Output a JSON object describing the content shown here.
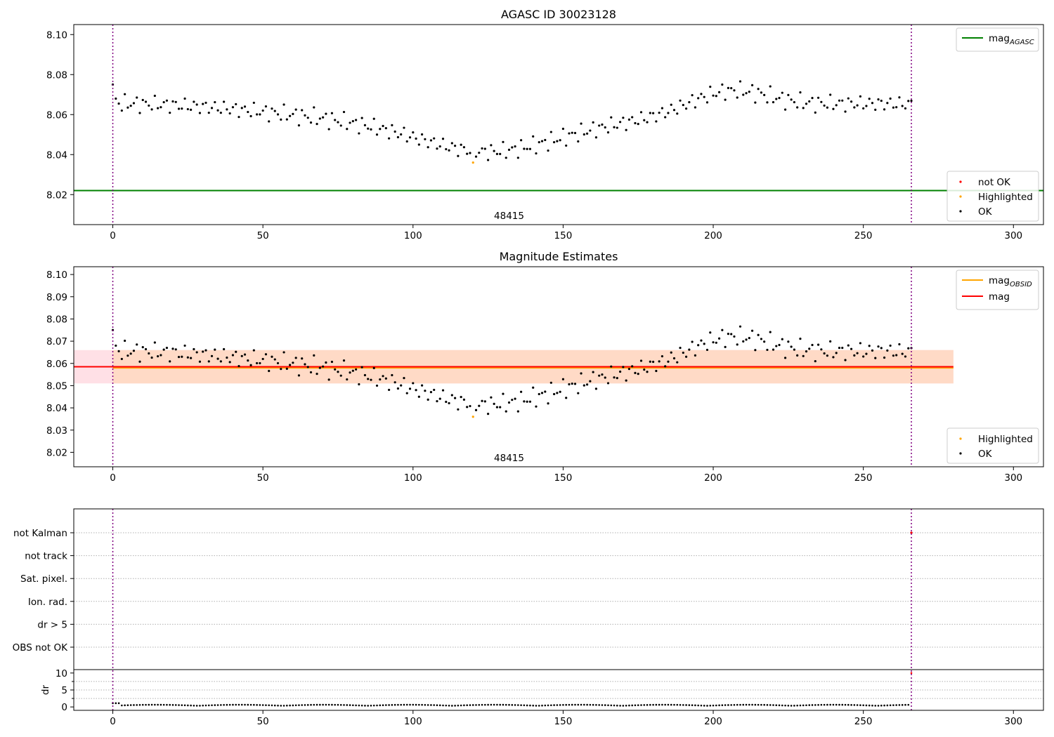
{
  "chart_data": [
    {
      "type": "scatter",
      "title": "AGASC ID 30023128",
      "xlim": [
        -13,
        310
      ],
      "ylim": [
        8.005,
        8.105
      ],
      "xticks": [
        0,
        50,
        100,
        150,
        200,
        250,
        300
      ],
      "yticks": [
        8.02,
        8.04,
        8.06,
        8.08,
        8.1
      ],
      "ytick_labels": [
        "8.02",
        "8.04",
        "8.06",
        "8.08",
        "8.10"
      ],
      "obsid_label": "48415",
      "vlines": [
        0,
        266
      ],
      "hlines": [
        {
          "name": "mag_AGASC",
          "y": 8.022,
          "x_range": [
            -13,
            310
          ],
          "color": "#008000"
        }
      ],
      "series": [
        {
          "name": "not OK",
          "color": "#ff0000",
          "x": [],
          "y": []
        },
        {
          "name": "Highlighted",
          "color": "#ffa500",
          "x": [
            120
          ],
          "y": [
            8.036
          ]
        },
        {
          "name": "OK",
          "color": "#000000",
          "x": [],
          "y": []
        }
      ],
      "legend_lines": [
        {
          "label": "mag",
          "sub": "AGASC",
          "color": "#008000"
        }
      ],
      "legend_markers": [
        {
          "label": "not OK",
          "color": "#ff0000"
        },
        {
          "label": "Highlighted",
          "color": "#ffa500"
        },
        {
          "label": "OK",
          "color": "#000000"
        }
      ]
    },
    {
      "type": "scatter",
      "title": "Magnitude Estimates",
      "xlim": [
        -13,
        310
      ],
      "ylim": [
        8.0135,
        8.1035
      ],
      "xticks": [
        0,
        50,
        100,
        150,
        200,
        250,
        300
      ],
      "yticks": [
        8.02,
        8.03,
        8.04,
        8.05,
        8.06,
        8.07,
        8.08,
        8.09,
        8.1
      ],
      "ytick_labels": [
        "8.02",
        "8.03",
        "8.04",
        "8.05",
        "8.06",
        "8.07",
        "8.08",
        "8.09",
        "8.10"
      ],
      "obsid_label": "48415",
      "vlines": [
        0,
        266
      ],
      "bands": [
        {
          "name": "mag band",
          "x_range": [
            -13,
            280
          ],
          "y_range": [
            8.051,
            8.066
          ],
          "color": "#ffdde3"
        },
        {
          "name": "mag_OBSID band",
          "x_range": [
            0,
            280
          ],
          "y_range": [
            8.051,
            8.066
          ],
          "color": "#ffd9c2"
        }
      ],
      "hlines": [
        {
          "name": "mag_OBSID",
          "y": 8.058,
          "x_range": [
            0,
            280
          ],
          "color": "#ffa500"
        },
        {
          "name": "mag",
          "y": 8.0585,
          "x_range": [
            -13,
            280
          ],
          "color": "#ff0000"
        }
      ],
      "series": [
        {
          "name": "Highlighted",
          "color": "#ffa500",
          "x": [
            120
          ],
          "y": [
            8.036
          ]
        },
        {
          "name": "OK",
          "color": "#000000",
          "x": [],
          "y": []
        }
      ],
      "legend_lines": [
        {
          "label": "mag",
          "sub": "OBSID",
          "color": "#ffa500"
        },
        {
          "label": "mag",
          "sub": "",
          "color": "#ff0000"
        }
      ],
      "legend_markers": [
        {
          "label": "Highlighted",
          "color": "#ffa500"
        },
        {
          "label": "OK",
          "color": "#000000"
        }
      ]
    },
    {
      "type": "scatter",
      "title": "",
      "xlim": [
        -13,
        310
      ],
      "xticks": [
        0,
        50,
        100,
        150,
        200,
        250,
        300
      ],
      "vlines": [
        0,
        266
      ],
      "categories": [
        "not Kalman",
        "not track",
        "Sat. pixel.",
        "Ion. rad.",
        "dr > 5",
        "OBS not OK"
      ],
      "flag_points": [
        {
          "category": "not Kalman",
          "x": 266,
          "color": "#ff0000"
        }
      ],
      "dr": {
        "ylabel": "dr",
        "ylim": [
          -1,
          11
        ],
        "yticks": [
          0,
          5,
          10
        ],
        "ytick_labels": [
          "0",
          "5",
          "10"
        ],
        "x": [],
        "y": []
      }
    }
  ]
}
